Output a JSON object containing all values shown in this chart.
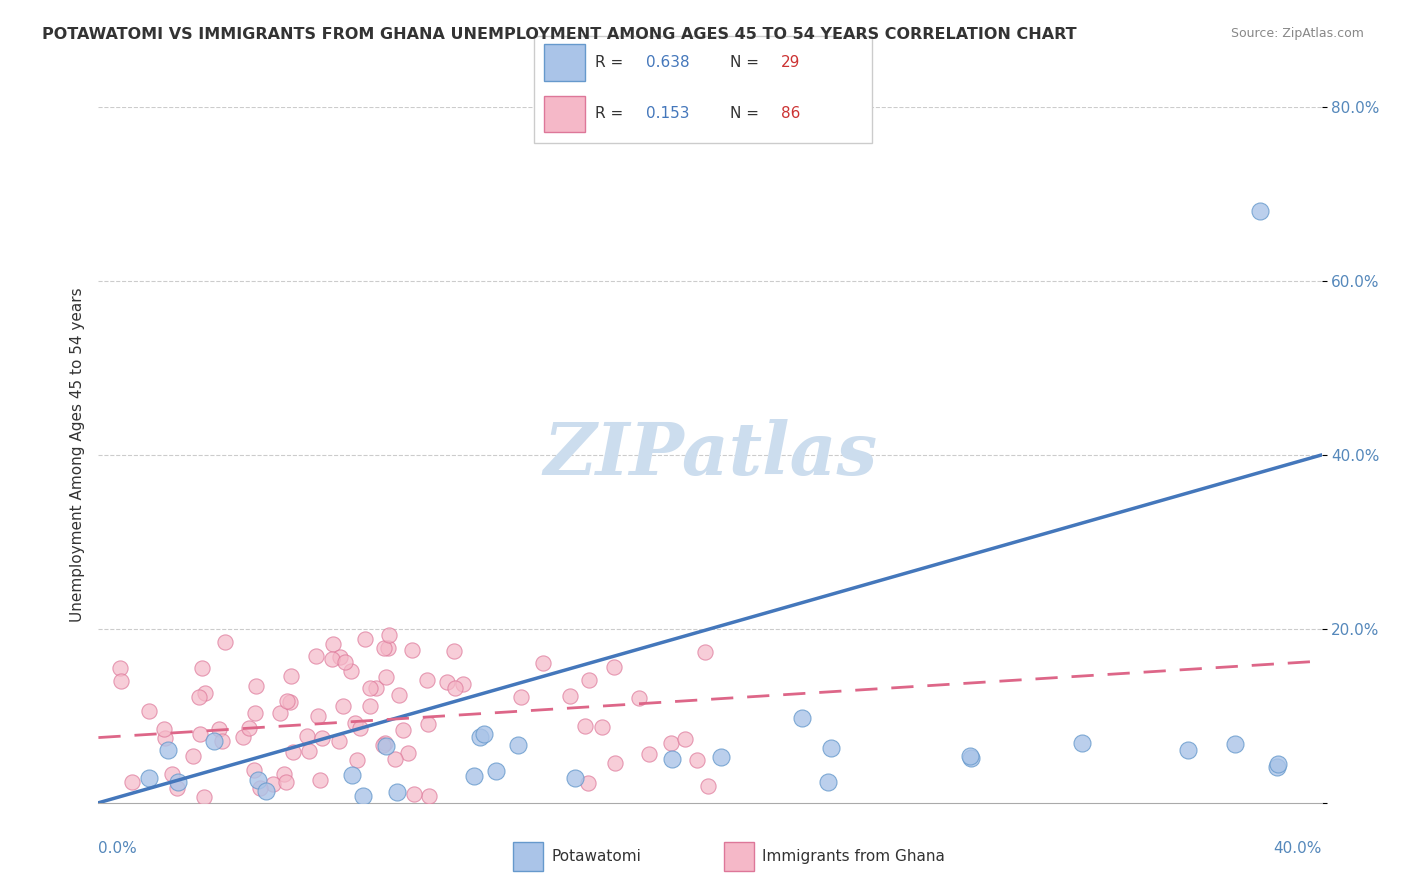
{
  "title": "POTAWATOMI VS IMMIGRANTS FROM GHANA UNEMPLOYMENT AMONG AGES 45 TO 54 YEARS CORRELATION CHART",
  "source": "Source: ZipAtlas.com",
  "ylabel": "Unemployment Among Ages 45 to 54 years",
  "xlim": [
    0.0,
    0.4
  ],
  "ylim": [
    0.0,
    0.8
  ],
  "series1_name": "Potawatomi",
  "series1_R": "0.638",
  "series1_N": "29",
  "series1_color": "#aac4e8",
  "series1_edge_color": "#6699cc",
  "series1_line_color": "#4477bb",
  "series2_name": "Immigrants from Ghana",
  "series2_R": "0.153",
  "series2_N": "86",
  "series2_color": "#f5b8c8",
  "series2_edge_color": "#dd7799",
  "series2_line_color": "#dd6688",
  "watermark": "ZIPatlas",
  "watermark_color": "#ccddee",
  "legend_R_color": "#4477bb",
  "legend_N_color": "#cc3333",
  "blue_slope": 1.0,
  "blue_intercept": 0.0,
  "pink_slope": 0.22,
  "pink_intercept": 0.075
}
